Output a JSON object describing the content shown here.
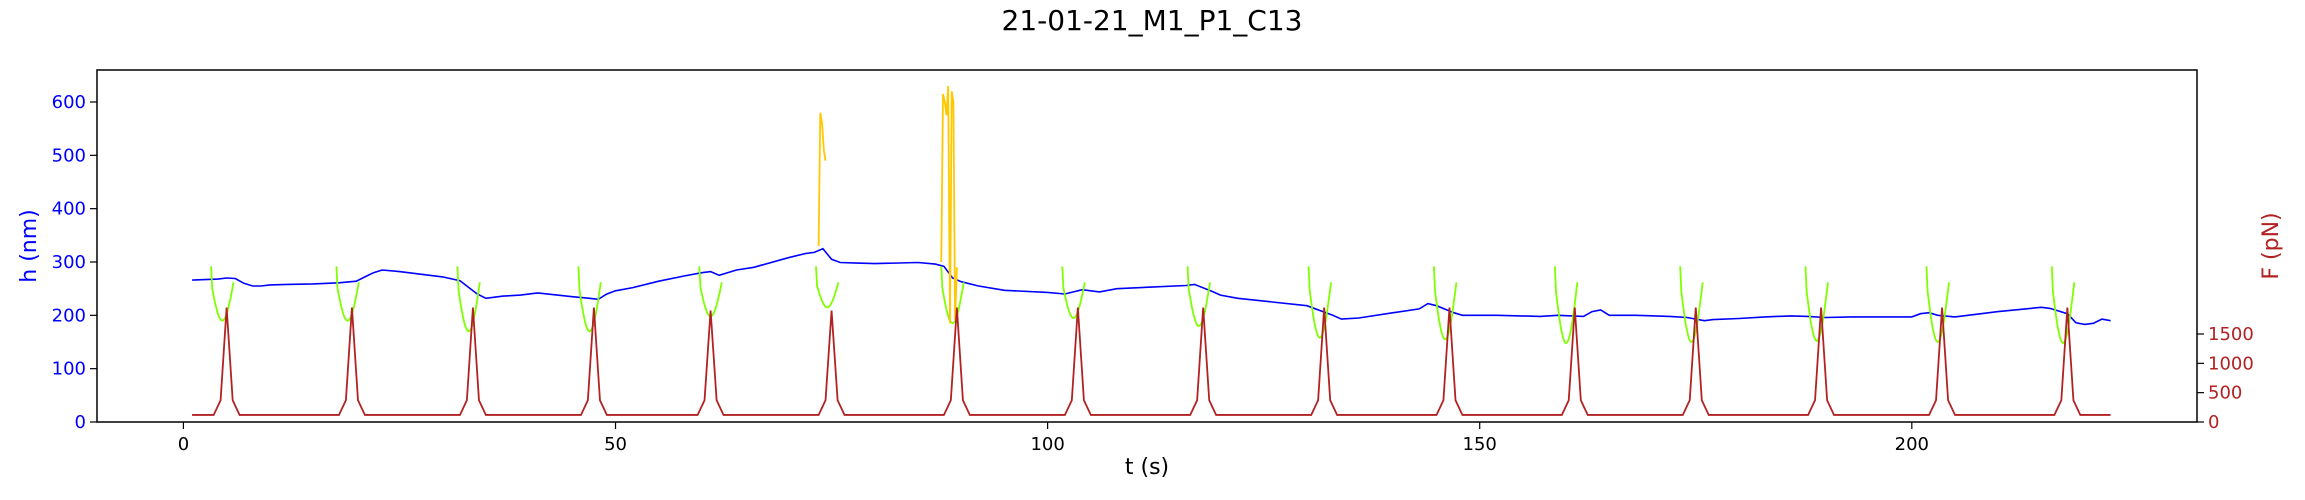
{
  "chart_data": {
    "type": "line",
    "title": "21-01-21_M1_P1_C13",
    "xlabel": "t (s)",
    "ylabel": "h (nm)",
    "y2label": "F (pN)",
    "xlim": [
      -10,
      233
    ],
    "ylim": [
      0,
      660
    ],
    "y2lim": [
      0,
      6000
    ],
    "xticks": [
      0,
      50,
      100,
      150,
      200
    ],
    "yticks": [
      0,
      100,
      200,
      300,
      400,
      500,
      600
    ],
    "y2ticks": [
      0,
      500,
      1000,
      1500
    ],
    "grid": false,
    "legend": "none",
    "colors": {
      "height": "#0000ff",
      "compression": "#7fff00",
      "spike": "#ffc800",
      "force": "#b22222",
      "axes": "#000000"
    },
    "height_baseline": [
      [
        1,
        266
      ],
      [
        4,
        268
      ],
      [
        5,
        270
      ],
      [
        6,
        269
      ],
      [
        7,
        260
      ],
      [
        8,
        255
      ],
      [
        9,
        255
      ],
      [
        10,
        257
      ],
      [
        12,
        258
      ],
      [
        15,
        259
      ],
      [
        18,
        261
      ],
      [
        20,
        264
      ],
      [
        21,
        272
      ],
      [
        22,
        280
      ],
      [
        23,
        285
      ],
      [
        25,
        282
      ],
      [
        30,
        272
      ],
      [
        32,
        265
      ],
      [
        34,
        240
      ],
      [
        35,
        232
      ],
      [
        37,
        236
      ],
      [
        39,
        238
      ],
      [
        41,
        242
      ],
      [
        45,
        235
      ],
      [
        47,
        232
      ],
      [
        48,
        230
      ],
      [
        49,
        240
      ],
      [
        50,
        246
      ],
      [
        52,
        252
      ],
      [
        55,
        264
      ],
      [
        58,
        274
      ],
      [
        60,
        280
      ],
      [
        61,
        282
      ],
      [
        62,
        275
      ],
      [
        64,
        285
      ],
      [
        66,
        290
      ],
      [
        70,
        308
      ],
      [
        72,
        316
      ],
      [
        73,
        318
      ],
      [
        74,
        325
      ],
      [
        75,
        305
      ],
      [
        76,
        299
      ],
      [
        78,
        298
      ],
      [
        80,
        297
      ],
      [
        85,
        299
      ],
      [
        87,
        296
      ],
      [
        88,
        292
      ],
      [
        89,
        270
      ],
      [
        90,
        263
      ],
      [
        92,
        255
      ],
      [
        95,
        247
      ],
      [
        100,
        243
      ],
      [
        102,
        240
      ],
      [
        104,
        248
      ],
      [
        106,
        244
      ],
      [
        108,
        250
      ],
      [
        112,
        253
      ],
      [
        116,
        256
      ],
      [
        117,
        258
      ],
      [
        119,
        245
      ],
      [
        120,
        238
      ],
      [
        122,
        232
      ],
      [
        126,
        225
      ],
      [
        130,
        218
      ],
      [
        133,
        200
      ],
      [
        134,
        193
      ],
      [
        136,
        195
      ],
      [
        140,
        205
      ],
      [
        143,
        212
      ],
      [
        144,
        222
      ],
      [
        145,
        218
      ],
      [
        147,
        205
      ],
      [
        148,
        200
      ],
      [
        152,
        200
      ],
      [
        157,
        198
      ],
      [
        159,
        200
      ],
      [
        162,
        198
      ],
      [
        163,
        207
      ],
      [
        164,
        210
      ],
      [
        165,
        200
      ],
      [
        168,
        200
      ],
      [
        172,
        198
      ],
      [
        174,
        196
      ],
      [
        176,
        190
      ],
      [
        177,
        192
      ],
      [
        180,
        194
      ],
      [
        183,
        197
      ],
      [
        186,
        199
      ],
      [
        188,
        198
      ],
      [
        190,
        196
      ],
      [
        193,
        197
      ],
      [
        196,
        197
      ],
      [
        200,
        197
      ],
      [
        201,
        203
      ],
      [
        202,
        205
      ],
      [
        203,
        200
      ],
      [
        205,
        197
      ],
      [
        210,
        207
      ],
      [
        215,
        215
      ],
      [
        216,
        213
      ],
      [
        218,
        203
      ],
      [
        219,
        186
      ],
      [
        220,
        183
      ],
      [
        221,
        185
      ],
      [
        222,
        193
      ],
      [
        223,
        190
      ]
    ],
    "compression_dips": [
      4.5,
      19,
      33,
      47,
      61,
      74.5,
      89,
      103,
      117.5,
      131.5,
      146,
      160,
      174.5,
      189,
      203,
      217.5
    ],
    "compression_depths": [
      190,
      190,
      170,
      170,
      198,
      215,
      185,
      195,
      180,
      158,
      155,
      148,
      150,
      152,
      150,
      148
    ],
    "spike_x": [
      73.5,
      73.7,
      73.9,
      74.1,
      74.3,
      87.7,
      87.9,
      88.1,
      88.3,
      88.5,
      88.7,
      88.9,
      89.1,
      89.3,
      89.5
    ],
    "spike_y": [
      330,
      580,
      560,
      510,
      490,
      300,
      615,
      600,
      575,
      630,
      185,
      620,
      600,
      190,
      290
    ],
    "force_peaks": [
      5,
      19.5,
      33.5,
      47.5,
      61,
      75,
      89.5,
      103.5,
      118,
      132,
      146.5,
      161,
      175,
      189.5,
      203.5,
      218
    ],
    "force_peak_values": [
      1950,
      1950,
      1950,
      1950,
      1900,
      1900,
      1950,
      1950,
      1950,
      1950,
      1950,
      1950,
      1950,
      1950,
      1950,
      1950
    ],
    "force_baseline": 120
  }
}
